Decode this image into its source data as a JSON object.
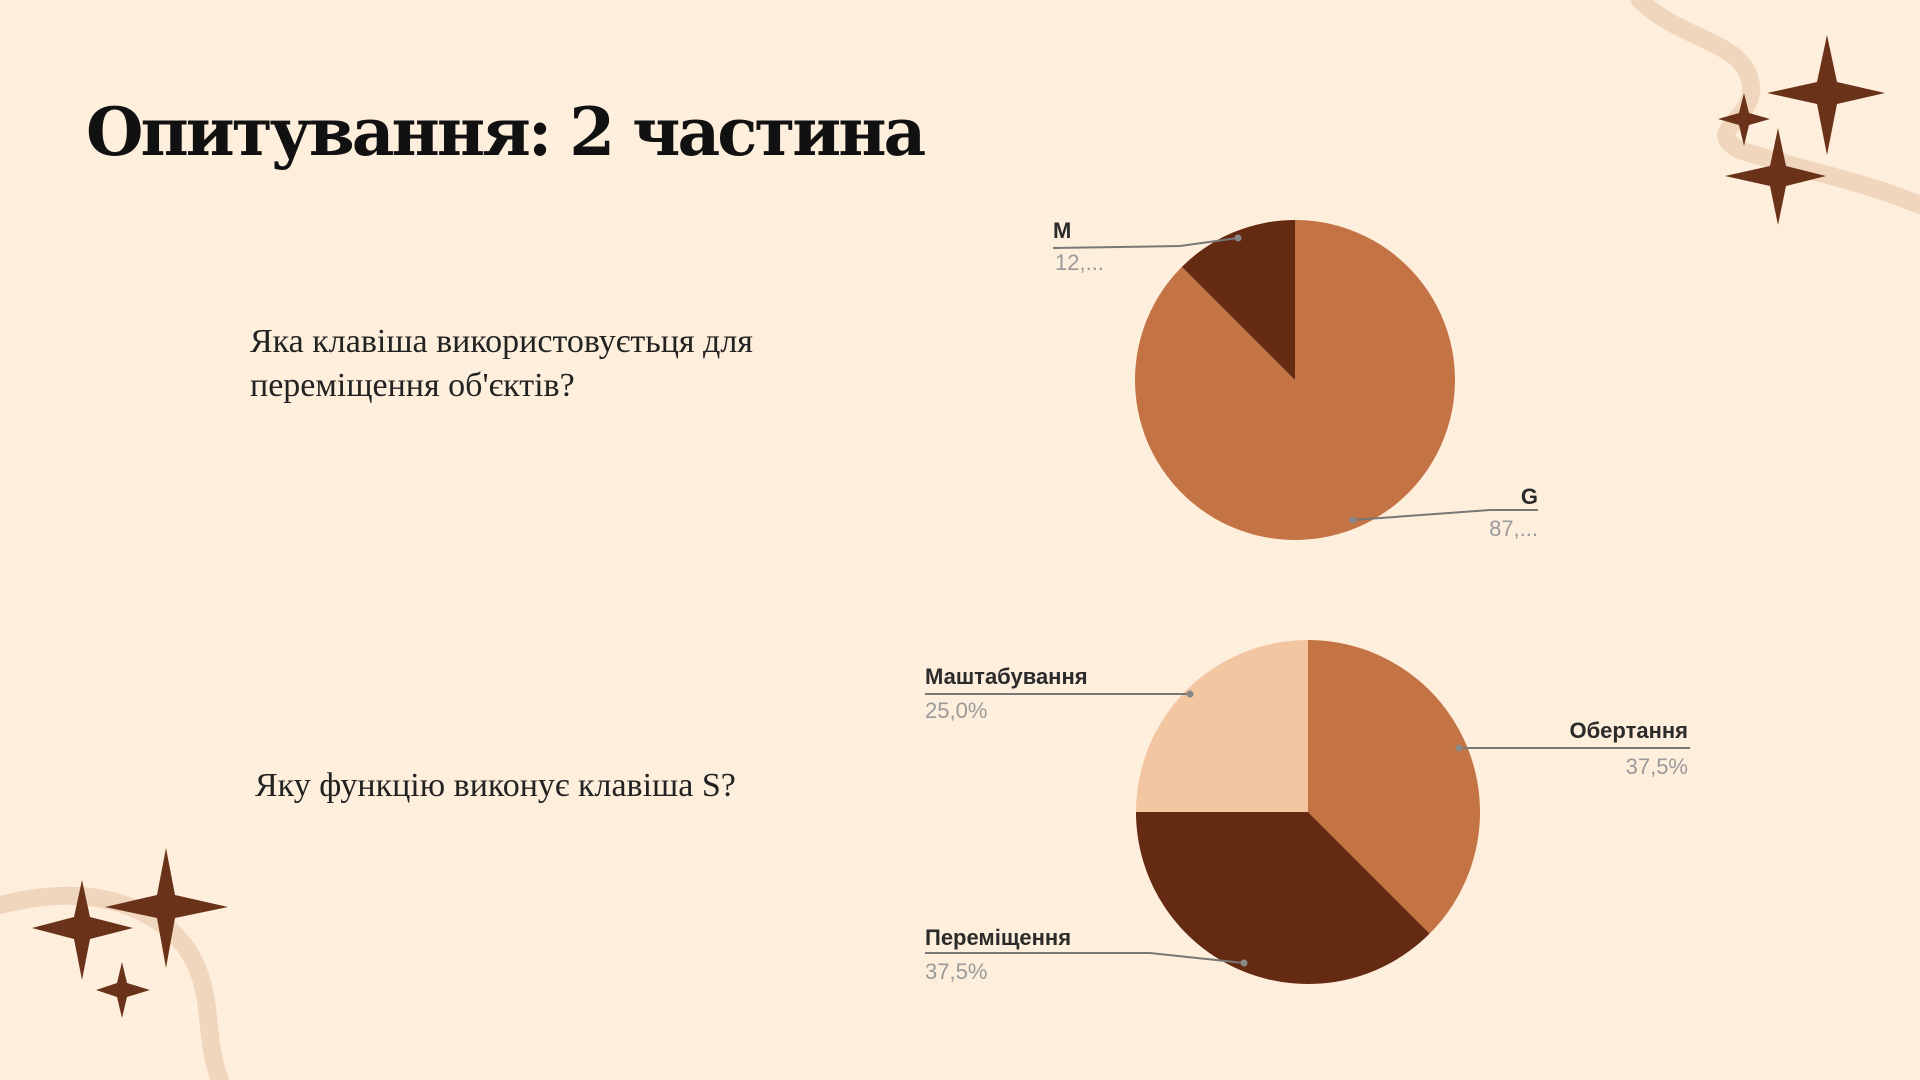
{
  "title": "Опитування: 2 частина",
  "questions": [
    "Яка клавіша використовуєтьця для переміщення об'єктів?",
    "Яку функцію виконує клавіша S?"
  ],
  "colors": {
    "background": "#FEEEDC",
    "decor_dark": "#6A3219",
    "decor_light": "#F1D6BE"
  },
  "chart_data": [
    {
      "type": "pie",
      "title": "",
      "slices": [
        {
          "name": "G",
          "value": 87.5,
          "label": "87,...",
          "color": "#C47444"
        },
        {
          "name": "M",
          "value": 12.5,
          "label": "12,...",
          "color": "#642A12"
        }
      ]
    },
    {
      "type": "pie",
      "title": "",
      "slices": [
        {
          "name": "Обертання",
          "value": 37.5,
          "label": "37,5%",
          "color": "#C47444"
        },
        {
          "name": "Переміщення",
          "value": 37.5,
          "label": "37,5%",
          "color": "#642A12"
        },
        {
          "name": "Маштабування",
          "value": 25.0,
          "label": "25,0%",
          "color": "#F1C6A0"
        }
      ]
    }
  ]
}
